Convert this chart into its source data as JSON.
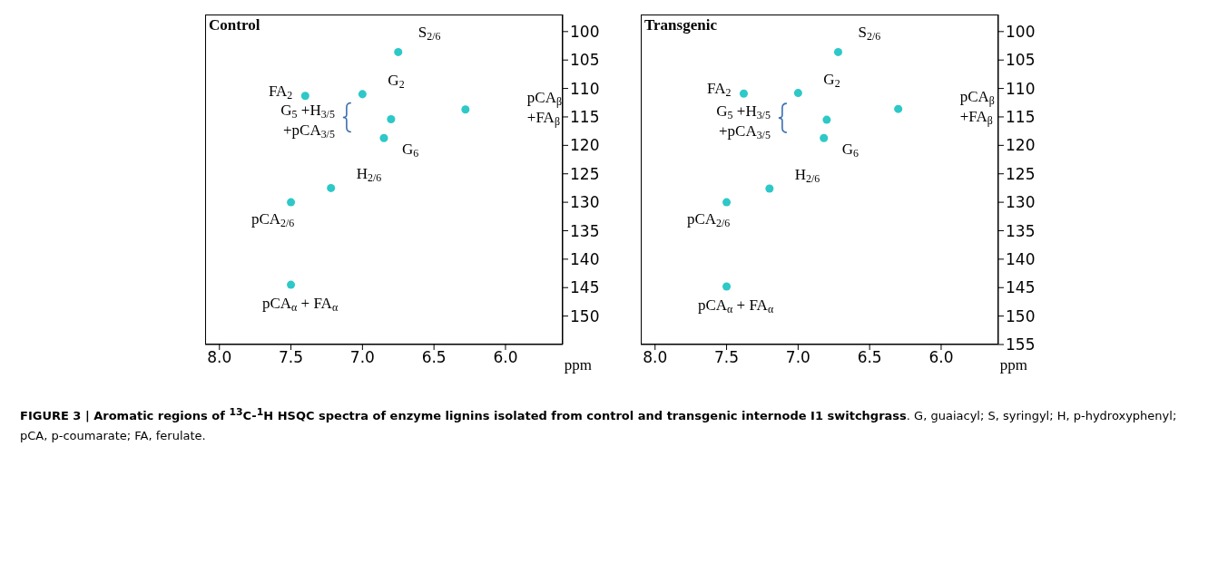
{
  "chart_data": [
    {
      "type": "scatter",
      "title": "Control",
      "xlabel": "ppm",
      "xlim": [
        8.1,
        5.6
      ],
      "xticks": [
        {
          "value": 8,
          "label": "8.0"
        },
        {
          "value": 7.5,
          "label": "7.5"
        },
        {
          "value": 7,
          "label": "7.0"
        },
        {
          "value": 6.5,
          "label": "6.5"
        },
        {
          "value": 6,
          "label": "6.0"
        }
      ],
      "ylim": [
        155,
        97
      ],
      "yticks": [
        100,
        105,
        110,
        115,
        120,
        125,
        130,
        135,
        140,
        145,
        150
      ],
      "grid": false,
      "marker": "circle",
      "series": [
        {
          "color": "#2ec8c8",
          "x": [
            6.75,
            7.0,
            7.4,
            6.8,
            6.28,
            6.85,
            7.22,
            7.5,
            7.5
          ],
          "values": [
            103.6,
            111,
            111.3,
            115.4,
            113.7,
            118.7,
            127.5,
            130,
            144.5
          ]
        }
      ],
      "annotations": [
        {
          "text": "S$_{2/6}$",
          "x": 6.75,
          "y": 103.6
        },
        {
          "text": "G$_{2}$",
          "x": 7.0,
          "y": 111
        },
        {
          "text": "FA$_{2}$",
          "x": 7.4,
          "y": 111.3
        },
        "G$_{5}$ +H$_{3/5}$ +pCA$_{3/5}$",
        "pCA$_{β}$ +FA$_{β}$",
        {
          "text": "G$_{6}$",
          "x": 6.85,
          "y": 118.7
        },
        {
          "text": "H$_{2/6}$",
          "x": 7.22,
          "y": 127.5
        },
        {
          "text": "pCA$_{2/6}$",
          "x": 7.5,
          "y": 130
        },
        {
          "text": "pCA$_{α}$ + FA$_{α}$",
          "x": 7.5,
          "y": 144.5
        },
        "FIGURE 3 | Aromatic regions of $^{13}$C-$^{1}$H HSQC spectra of enzyme lignins isolated from control and transgenic internode I1 switchgrass",
        ". G, guaiacyl; S, syringyl; H, p-hydroxyphenyl; pCA, p-coumarate; FA, ferulate."
      ]
    },
    {
      "type": "scatter",
      "title": "Transgenic",
      "xlabel": "ppm",
      "xlim": [
        8.1,
        5.6
      ],
      "xticks": [
        {
          "value": 8,
          "label": "8.0"
        },
        {
          "value": 7.5,
          "label": "7.5"
        },
        {
          "value": 7,
          "label": "7.0"
        },
        {
          "value": 6.5,
          "label": "6.5"
        },
        {
          "value": 6,
          "label": "6.0"
        }
      ],
      "ylim": [
        155,
        97
      ],
      "yticks": [
        100,
        105,
        110,
        115,
        120,
        125,
        130,
        135,
        140,
        145,
        150,
        155
      ],
      "grid": false,
      "marker": "circle",
      "series": [
        {
          "color": "#2ec8c8",
          "x": [
            6.72,
            7.0,
            7.38,
            6.8,
            6.3,
            6.82,
            7.2,
            7.5,
            7.5
          ],
          "values": [
            103.6,
            110.8,
            110.9,
            115.5,
            113.6,
            118.7,
            127.6,
            130,
            144.8
          ]
        }
      ],
      "annotations": [
        {
          "text": "S$_{2/6}$",
          "x": 6.72,
          "y": 103.6
        },
        {
          "text": "G$_{2}$",
          "x": 7.0,
          "y": 110.8
        },
        {
          "text": "FA$_{2}$",
          "x": 7.38,
          "y": 110.9
        },
        "G$_{5}$ +H$_{3/5}$ +pCA$_{3/5}$",
        "pCA$_{β}$ +FA$_{β}$",
        {
          "text": "G$_{6}$",
          "x": 6.82,
          "y": 118.7
        },
        {
          "text": "H$_{2/6}$",
          "x": 7.2,
          "y": 127.6
        },
        {
          "text": "pCA$_{2/6}$",
          "x": 7.5,
          "y": 130
        },
        {
          "text": "pCA$_{α}$ + FA$_{α}$",
          "x": 7.5,
          "y": 144.8
        }
      ]
    }
  ]
}
